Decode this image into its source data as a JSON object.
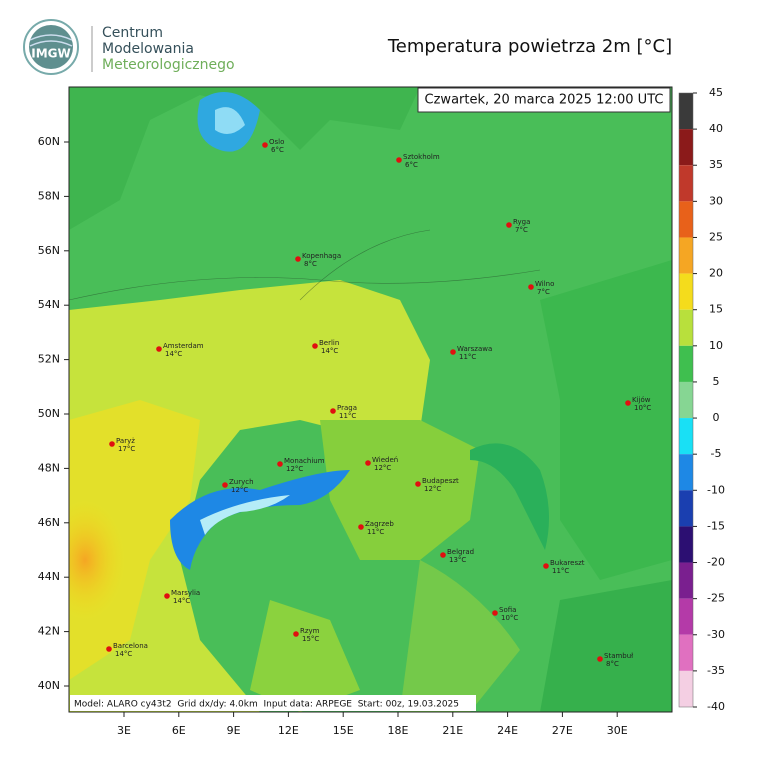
{
  "header": {
    "logo_text": "IMGW",
    "org_lines": [
      "Centrum",
      "Modelowania",
      "Meteorologicznego"
    ],
    "title": "Temperatura powietrza 2m [°C]"
  },
  "map": {
    "valid_time": "Czwartek, 20 marca 2025 12:00 UTC",
    "lat_labels": [
      "60N",
      "58N",
      "56N",
      "54N",
      "52N",
      "50N",
      "48N",
      "46N",
      "44N",
      "42N",
      "40N"
    ],
    "lon_labels": [
      "3E",
      "6E",
      "9E",
      "12E",
      "15E",
      "18E",
      "21E",
      "24E",
      "27E",
      "30E"
    ],
    "cities": [
      {
        "name": "Oslo",
        "temp": "6°C"
      },
      {
        "name": "Sztokholm",
        "temp": "6°C"
      },
      {
        "name": "Ryga",
        "temp": "7°C"
      },
      {
        "name": "Kopenhaga",
        "temp": "8°C"
      },
      {
        "name": "Wilno",
        "temp": "7°C"
      },
      {
        "name": "Amsterdam",
        "temp": "14°C"
      },
      {
        "name": "Berlin",
        "temp": "14°C"
      },
      {
        "name": "Warszawa",
        "temp": "11°C"
      },
      {
        "name": "Praga",
        "temp": "11°C"
      },
      {
        "name": "Kijów",
        "temp": "10°C"
      },
      {
        "name": "Paryż",
        "temp": "17°C"
      },
      {
        "name": "Monachium",
        "temp": "12°C"
      },
      {
        "name": "Wiedeń",
        "temp": "12°C"
      },
      {
        "name": "Zurych",
        "temp": "12°C"
      },
      {
        "name": "Budapeszt",
        "temp": "12°C"
      },
      {
        "name": "Zagrzeb",
        "temp": "11°C"
      },
      {
        "name": "Belgrad",
        "temp": "13°C"
      },
      {
        "name": "Bukareszt",
        "temp": "11°C"
      },
      {
        "name": "Marsylia",
        "temp": "14°C"
      },
      {
        "name": "Sofia",
        "temp": "10°C"
      },
      {
        "name": "Rzym",
        "temp": "15°C"
      },
      {
        "name": "Barcelona",
        "temp": "14°C"
      },
      {
        "name": "Stambuł",
        "temp": "8°C"
      }
    ],
    "footer": "Model: ALARO cy43t2  Grid dx/dy: 4.0km  Input data: ARPEGE  Start: 00z, 19.03.2025"
  },
  "colorbar": {
    "ticks": [
      45,
      40,
      35,
      30,
      25,
      20,
      15,
      10,
      5,
      0,
      -5,
      -10,
      -15,
      -20,
      -25,
      -30,
      -35,
      -40
    ],
    "colors": [
      "#3a3a3a",
      "#8b1a1a",
      "#c0392b",
      "#e8611a",
      "#f5a623",
      "#f4dc1c",
      "#b8e03c",
      "#3fbf4f",
      "#86d693",
      "#19e0f5",
      "#1e88e5",
      "#1a3fb0",
      "#2c0f72",
      "#7a1f8f",
      "#b43aa8",
      "#e070c0",
      "#f4cfe3"
    ]
  }
}
